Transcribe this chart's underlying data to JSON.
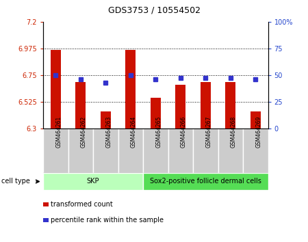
{
  "title": "GDS3753 / 10554502",
  "samples": [
    "GSM464261",
    "GSM464262",
    "GSM464263",
    "GSM464264",
    "GSM464265",
    "GSM464266",
    "GSM464267",
    "GSM464268",
    "GSM464269"
  ],
  "transformed_counts": [
    6.965,
    6.69,
    6.44,
    6.965,
    6.555,
    6.67,
    6.69,
    6.69,
    6.44
  ],
  "percentile_ranks": [
    50,
    46,
    43,
    50,
    46,
    47,
    47,
    47,
    46
  ],
  "ylim_left": [
    6.3,
    7.2
  ],
  "ylim_right": [
    0,
    100
  ],
  "yticks_left": [
    6.3,
    6.525,
    6.75,
    6.975,
    7.2
  ],
  "ytick_labels_left": [
    "6.3",
    "6.525",
    "6.75",
    "6.975",
    "7.2"
  ],
  "yticks_right": [
    0,
    25,
    50,
    75,
    100
  ],
  "ytick_labels_right": [
    "0",
    "25",
    "50",
    "75",
    "100%"
  ],
  "hlines": [
    6.525,
    6.75,
    6.975
  ],
  "bar_color": "#cc1100",
  "dot_color": "#3333cc",
  "bar_bottom": 6.3,
  "bar_width": 0.4,
  "cell_type_groups": [
    {
      "label": "SKP",
      "start": 0,
      "end": 3,
      "color": "#bbffbb"
    },
    {
      "label": "Sox2-positive follicle dermal cells",
      "start": 4,
      "end": 8,
      "color": "#55dd55"
    }
  ],
  "cell_type_label": "cell type",
  "legend_items": [
    {
      "color": "#cc1100",
      "label": "transformed count"
    },
    {
      "color": "#3333cc",
      "label": "percentile rank within the sample"
    }
  ],
  "tick_label_color_left": "#cc2200",
  "tick_label_color_right": "#2244cc",
  "label_bg_color": "#cccccc",
  "title_fontsize": 9,
  "tick_fontsize": 7,
  "sample_fontsize": 5.5,
  "celltype_fontsize": 7,
  "legend_fontsize": 7
}
